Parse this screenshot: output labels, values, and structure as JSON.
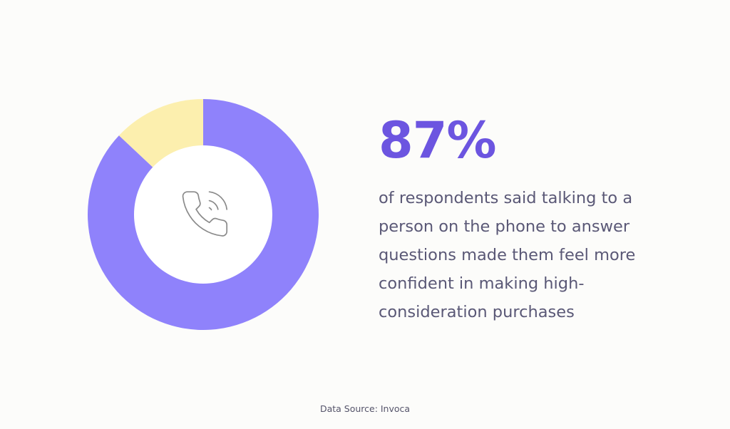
{
  "chart_data": {
    "type": "pie",
    "style": "donut",
    "slices": [
      {
        "value": 87,
        "color": "#8f82fb"
      },
      {
        "value": 13,
        "color": "#fcefae"
      }
    ]
  },
  "center_icon": "phone-call-icon",
  "stat": {
    "value": "87%",
    "description": "of respondents said talking to a person on the phone to answer questions made them feel more confident in making high-consideration purchases"
  },
  "source": "Data Source: Invoca",
  "colors": {
    "accent": "#6c55e0",
    "primary_slice": "#8f82fb",
    "secondary_slice": "#fcefae",
    "center": "#ffffff",
    "text": "#5a5876",
    "background": "#fcfcfa"
  }
}
